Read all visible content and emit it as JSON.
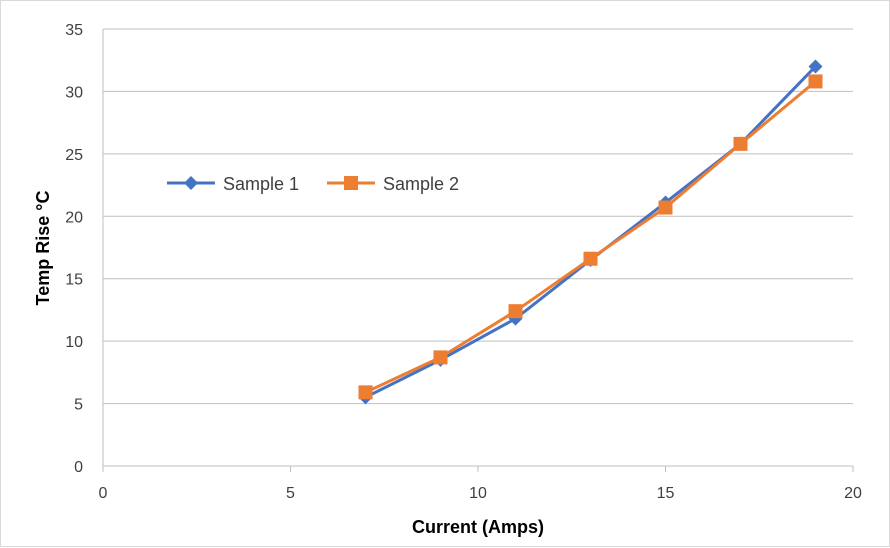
{
  "chart_data": {
    "type": "line",
    "title": "",
    "xlabel": "Current (Amps)",
    "ylabel": "Temp Rise °C",
    "xlim": [
      0,
      20
    ],
    "ylim": [
      0,
      35
    ],
    "x_ticks": [
      0,
      5,
      10,
      15,
      20
    ],
    "y_ticks": [
      0,
      5,
      10,
      15,
      20,
      25,
      30,
      35
    ],
    "grid": "horizontal",
    "legend_placement": "left-center",
    "x": [
      7,
      9,
      11,
      13,
      15,
      17,
      19
    ],
    "series": [
      {
        "name": "Sample 1",
        "color": "#4472C4",
        "marker": "diamond",
        "values": [
          5.5,
          8.5,
          11.8,
          16.5,
          21.1,
          25.8,
          32.0
        ]
      },
      {
        "name": "Sample 2",
        "color": "#ED7D31",
        "marker": "square",
        "values": [
          5.9,
          8.7,
          12.4,
          16.6,
          20.7,
          25.8,
          30.8
        ]
      }
    ]
  }
}
